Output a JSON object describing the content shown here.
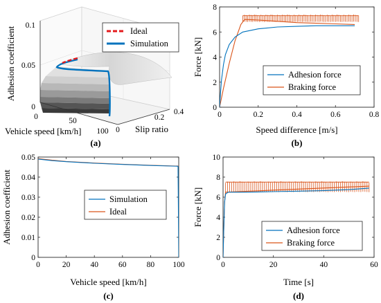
{
  "colors": {
    "sim_3d": "#0072bd",
    "ideal_3d": "#e41a1c",
    "series_blue": "#0072bd",
    "series_orange": "#d95319",
    "surface_light": "#e8e8e8",
    "surface_dark": "#3a3a3a"
  },
  "chart_data": [
    {
      "id": "a",
      "type": "surface3d",
      "caption": "(a)",
      "xlabel": "Vehicle speed [km/h]",
      "ylabel": "Slip ratio",
      "zlabel": "Adhesion coefficient",
      "xticks": [
        "100",
        "50",
        "0"
      ],
      "yticks": [
        "0",
        "0.2",
        "0.4"
      ],
      "zticks": [
        "0",
        "0.05",
        "0.1"
      ],
      "zlim": [
        0,
        0.1
      ],
      "legend": {
        "position": "top-right",
        "entries": [
          "Ideal",
          "Simulation"
        ]
      },
      "series": [
        {
          "name": "Ideal",
          "style": "dashed",
          "x": [
            60,
            50,
            40,
            30
          ],
          "z": [
            0.053,
            0.051,
            0.05,
            0.049
          ]
        },
        {
          "name": "Simulation",
          "style": "solid",
          "x": [
            100,
            80,
            60,
            40,
            20,
            0
          ],
          "z": [
            0.045,
            0.046,
            0.047,
            0.048,
            0.049,
            0.05
          ]
        }
      ]
    },
    {
      "id": "b",
      "type": "line",
      "caption": "(b)",
      "xlabel": "Speed difference [m/s]",
      "ylabel": "Force [kN]",
      "xlim": [
        0,
        0.8
      ],
      "ylim": [
        0,
        8
      ],
      "xticks": [
        "0",
        "0.2",
        "0.4",
        "0.6",
        "0.8"
      ],
      "yticks": [
        "0",
        "2",
        "4",
        "6",
        "8"
      ],
      "legend": {
        "position": "bottom-right",
        "entries": [
          "Adhesion force",
          "Braking force"
        ]
      },
      "series": [
        {
          "name": "Adhesion force",
          "x": [
            0,
            0.005,
            0.01,
            0.02,
            0.03,
            0.05,
            0.08,
            0.12,
            0.2,
            0.3,
            0.4,
            0.5,
            0.6,
            0.7
          ],
          "y": [
            0,
            1.2,
            2.2,
            3.4,
            4.2,
            5.0,
            5.6,
            6.0,
            6.25,
            6.4,
            6.45,
            6.5,
            6.5,
            6.5
          ]
        },
        {
          "name": "Braking force",
          "x": [
            0,
            0.02,
            0.05,
            0.08,
            0.11,
            0.13,
            0.2,
            0.3,
            0.4,
            0.5,
            0.6,
            0.7
          ],
          "y": [
            0,
            1.5,
            3.5,
            5.3,
            6.6,
            7.0,
            6.95,
            6.85,
            6.75,
            6.7,
            6.65,
            6.6
          ],
          "band": {
            "x": [
              0.12,
              0.72
            ],
            "y": [
              6.8,
              7.4
            ]
          }
        }
      ]
    },
    {
      "id": "c",
      "type": "line",
      "caption": "(c)",
      "xlabel": "Vehicle speed [km/h]",
      "ylabel": "Adhesion coefficient",
      "xlim": [
        0,
        100
      ],
      "ylim": [
        0,
        0.05
      ],
      "xticks": [
        "0",
        "20",
        "40",
        "60",
        "80",
        "100"
      ],
      "yticks": [
        "0",
        "0.01",
        "0.02",
        "0.03",
        "0.04",
        "0.05"
      ],
      "legend": {
        "position": "center-right",
        "entries": [
          "Simulation",
          "Ideal"
        ]
      },
      "series": [
        {
          "name": "Simulation",
          "x": [
            0,
            10,
            20,
            40,
            60,
            80,
            99.5,
            99.8,
            100
          ],
          "y": [
            0.049,
            0.0482,
            0.0477,
            0.0469,
            0.0463,
            0.0458,
            0.0454,
            0.02,
            0
          ]
        },
        {
          "name": "Ideal",
          "x": [
            0,
            10,
            20,
            40,
            60,
            80,
            100
          ],
          "y": [
            0.0492,
            0.0484,
            0.0478,
            0.047,
            0.0464,
            0.0459,
            0.0455
          ]
        }
      ]
    },
    {
      "id": "d",
      "type": "line",
      "caption": "(d)",
      "xlabel": "Time [s]",
      "ylabel": "Force [kN]",
      "xlim": [
        0,
        60
      ],
      "ylim": [
        0,
        10
      ],
      "xticks": [
        "0",
        "20",
        "40",
        "60"
      ],
      "yticks": [
        "0",
        "2",
        "4",
        "6",
        "8",
        "10"
      ],
      "legend": {
        "position": "bottom-right",
        "entries": [
          "Adhesion force",
          "Braking force"
        ]
      },
      "series": [
        {
          "name": "Adhesion force",
          "x": [
            0,
            0.3,
            0.6,
            1,
            2,
            10,
            20,
            30,
            40,
            50,
            58
          ],
          "y": [
            0,
            3,
            5.5,
            6.3,
            6.5,
            6.5,
            6.55,
            6.6,
            6.65,
            6.75,
            6.9
          ]
        },
        {
          "name": "Braking force",
          "x": [
            0,
            0.3,
            0.6,
            1,
            58
          ],
          "y": [
            0,
            3,
            5.5,
            6.5,
            7.1
          ],
          "band": {
            "x": [
              1,
              58
            ],
            "y": [
              6.5,
              7.6
            ]
          }
        }
      ]
    }
  ]
}
